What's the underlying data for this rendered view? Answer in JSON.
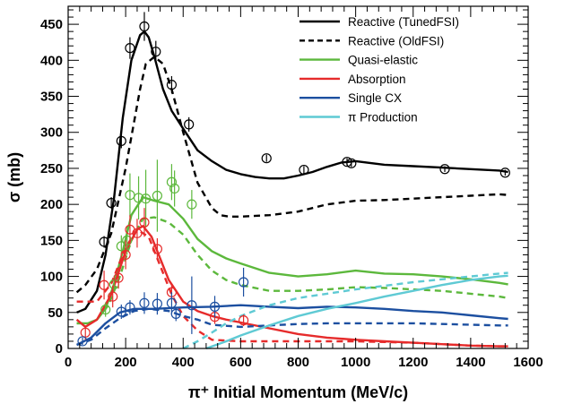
{
  "chart_data": {
    "type": "line",
    "title": "",
    "xlabel": "π⁺ Initial Momentum (MeV/c)",
    "ylabel": "σ (mb)",
    "xlim": [
      0,
      1600
    ],
    "ylim": [
      0,
      475
    ],
    "x_ticks": [
      "0",
      "200",
      "400",
      "600",
      "800",
      "1000",
      "1200",
      "1400",
      "1600"
    ],
    "y_ticks": [
      "0",
      "50",
      "100",
      "150",
      "200",
      "250",
      "300",
      "350",
      "400",
      "450"
    ],
    "grid": false,
    "legend_position": "top-right",
    "series": [
      {
        "name": "Reactive (TunedFSI)",
        "color": "#000000",
        "dash": "solid",
        "x": [
          30,
          60,
          100,
          130,
          160,
          190,
          220,
          250,
          265,
          280,
          300,
          330,
          360,
          400,
          450,
          500,
          550,
          600,
          650,
          700,
          750,
          800,
          850,
          900,
          950,
          1000,
          1100,
          1200,
          1300,
          1400,
          1500,
          1530
        ],
        "y": [
          50,
          55,
          80,
          130,
          210,
          320,
          400,
          435,
          440,
          432,
          405,
          360,
          330,
          305,
          275,
          260,
          248,
          242,
          238,
          236,
          236,
          240,
          245,
          252,
          258,
          260,
          255,
          253,
          251,
          249,
          247,
          245
        ]
      },
      {
        "name": "Reactive (OldFSI)",
        "color": "#000000",
        "dash": "dashed",
        "x": [
          30,
          60,
          100,
          150,
          200,
          250,
          270,
          300,
          330,
          360,
          400,
          450,
          500,
          530,
          560,
          600,
          700,
          800,
          900,
          1000,
          1100,
          1200,
          1300,
          1400,
          1500,
          1530
        ],
        "y": [
          78,
          88,
          110,
          160,
          250,
          360,
          395,
          405,
          395,
          360,
          300,
          230,
          195,
          185,
          183,
          183,
          185,
          190,
          200,
          205,
          206,
          208,
          210,
          212,
          214,
          213
        ]
      },
      {
        "name": "Quasi-elastic",
        "color": "#5cb83c",
        "dash": "solid",
        "x": [
          30,
          70,
          100,
          130,
          160,
          190,
          220,
          260,
          300,
          350,
          400,
          450,
          500,
          550,
          600,
          700,
          800,
          900,
          1000,
          1100,
          1200,
          1300,
          1400,
          1500,
          1530
        ],
        "y": [
          35,
          35,
          40,
          55,
          90,
          135,
          185,
          210,
          205,
          200,
          180,
          152,
          135,
          125,
          118,
          105,
          100,
          103,
          108,
          104,
          103,
          100,
          96,
          91,
          89
        ]
      },
      {
        "name": "Quasi-elastic (OldFSI)",
        "color": "#5cb83c",
        "dash": "dashed",
        "x": [
          30,
          70,
          100,
          140,
          180,
          220,
          260,
          300,
          350,
          400,
          450,
          500,
          550,
          600,
          700,
          800,
          900,
          1000,
          1100,
          1200,
          1300,
          1400,
          1500,
          1530
        ],
        "y": [
          35,
          35,
          40,
          60,
          100,
          150,
          180,
          182,
          175,
          158,
          130,
          108,
          95,
          88,
          80,
          80,
          82,
          85,
          84,
          82,
          80,
          76,
          72,
          70
        ]
      },
      {
        "name": "Absorption",
        "color": "#e62b2b",
        "dash": "solid",
        "x": [
          30,
          60,
          100,
          150,
          200,
          240,
          260,
          290,
          320,
          350,
          400,
          450,
          500,
          550,
          600,
          700,
          800,
          900,
          1000,
          1100,
          1200,
          1300,
          1400,
          1500,
          1530
        ],
        "y": [
          40,
          30,
          40,
          75,
          135,
          165,
          170,
          155,
          125,
          95,
          65,
          52,
          45,
          40,
          36,
          28,
          20,
          15,
          12,
          10,
          8,
          6,
          4,
          3,
          3
        ]
      },
      {
        "name": "Absorption (OldFSI)",
        "color": "#e62b2b",
        "dash": "dashed",
        "x": [
          30,
          100,
          150,
          200,
          240,
          280,
          320,
          360,
          400,
          450,
          500,
          600,
          700,
          800,
          900,
          1000,
          1100,
          1200,
          1300,
          1400,
          1500,
          1530
        ],
        "y": [
          65,
          65,
          90,
          140,
          165,
          155,
          115,
          75,
          45,
          25,
          12,
          10,
          10,
          10,
          10,
          10,
          9,
          8,
          6,
          4,
          3,
          3
        ]
      },
      {
        "name": "Single CX",
        "color": "#1c4fa0",
        "dash": "solid",
        "x": [
          30,
          80,
          130,
          180,
          230,
          300,
          400,
          500,
          600,
          700,
          800,
          900,
          1000,
          1100,
          1200,
          1300,
          1400,
          1500,
          1530
        ],
        "y": [
          5,
          15,
          35,
          50,
          55,
          55,
          57,
          58,
          60,
          58,
          56,
          58,
          57,
          55,
          52,
          50,
          46,
          42,
          41
        ]
      },
      {
        "name": "Single CX (OldFSI)",
        "color": "#1c4fa0",
        "dash": "dashed",
        "x": [
          30,
          80,
          130,
          180,
          230,
          280,
          350,
          400,
          450,
          500,
          600,
          700,
          800,
          900,
          1000,
          1100,
          1200,
          1300,
          1400,
          1500,
          1530
        ],
        "y": [
          5,
          12,
          28,
          42,
          52,
          55,
          52,
          45,
          40,
          33,
          30,
          32,
          34,
          35,
          35,
          35,
          35,
          34,
          33,
          32,
          32
        ]
      },
      {
        "name": "π Production",
        "color": "#5fcad4",
        "dash": "solid",
        "x": [
          480,
          550,
          600,
          700,
          800,
          900,
          1000,
          1100,
          1200,
          1300,
          1400,
          1500,
          1530
        ],
        "y": [
          0,
          10,
          18,
          32,
          45,
          55,
          63,
          72,
          80,
          88,
          95,
          100,
          101
        ]
      },
      {
        "name": "π Production (OldFSI)",
        "color": "#5fcad4",
        "dash": "dashed",
        "x": [
          400,
          450,
          500,
          550,
          600,
          700,
          800,
          900,
          1000,
          1100,
          1200,
          1300,
          1400,
          1500,
          1530
        ],
        "y": [
          0,
          10,
          22,
          35,
          45,
          60,
          70,
          76,
          82,
          87,
          92,
          96,
          100,
          104,
          105
        ]
      }
    ],
    "data_points": [
      {
        "color": "#000000",
        "points": [
          {
            "x": 125,
            "y": 148,
            "yerr": 8
          },
          {
            "x": 150,
            "y": 202,
            "yerr": 8
          },
          {
            "x": 185,
            "y": 288,
            "yerr": 10
          },
          {
            "x": 215,
            "y": 417,
            "yerr": 15
          },
          {
            "x": 265,
            "y": 447,
            "yerr": 20
          },
          {
            "x": 305,
            "y": 412,
            "yerr": 15
          },
          {
            "x": 360,
            "y": 366,
            "yerr": 12
          },
          {
            "x": 420,
            "y": 311,
            "yerr": 10
          },
          {
            "x": 690,
            "y": 264,
            "yerr": 5
          },
          {
            "x": 820,
            "y": 248,
            "yerr": 5
          },
          {
            "x": 970,
            "y": 259,
            "yerr": 5
          },
          {
            "x": 985,
            "y": 257,
            "yerr": 5
          },
          {
            "x": 1310,
            "y": 249,
            "yerr": 4
          },
          {
            "x": 1520,
            "y": 244,
            "yerr": 4
          }
        ]
      },
      {
        "color": "#5cb83c",
        "points": [
          {
            "x": 130,
            "y": 54,
            "yerr": 10
          },
          {
            "x": 160,
            "y": 89,
            "yerr": 12
          },
          {
            "x": 185,
            "y": 142,
            "yerr": 15
          },
          {
            "x": 205,
            "y": 150,
            "yerr": 20
          },
          {
            "x": 215,
            "y": 213,
            "yerr": 30
          },
          {
            "x": 245,
            "y": 209,
            "yerr": 30
          },
          {
            "x": 270,
            "y": 208,
            "yerr": 40
          },
          {
            "x": 310,
            "y": 212,
            "yerr": 50
          },
          {
            "x": 360,
            "y": 231,
            "yerr": 25
          },
          {
            "x": 370,
            "y": 222,
            "yerr": 25
          },
          {
            "x": 430,
            "y": 200,
            "yerr": 20
          }
        ]
      },
      {
        "color": "#e62b2b",
        "points": [
          {
            "x": 60,
            "y": 22,
            "yerr": 10
          },
          {
            "x": 125,
            "y": 88,
            "yerr": 20
          },
          {
            "x": 155,
            "y": 72,
            "yerr": 15
          },
          {
            "x": 175,
            "y": 98,
            "yerr": 15
          },
          {
            "x": 200,
            "y": 130,
            "yerr": 20
          },
          {
            "x": 215,
            "y": 165,
            "yerr": 20
          },
          {
            "x": 240,
            "y": 160,
            "yerr": 20
          },
          {
            "x": 265,
            "y": 175,
            "yerr": 20
          },
          {
            "x": 310,
            "y": 138,
            "yerr": 15
          },
          {
            "x": 360,
            "y": 78,
            "yerr": 10
          },
          {
            "x": 510,
            "y": 44,
            "yerr": 10
          },
          {
            "x": 610,
            "y": 39,
            "yerr": 8
          }
        ]
      },
      {
        "color": "#1c4fa0",
        "points": [
          {
            "x": 50,
            "y": 10,
            "yerr": 5
          },
          {
            "x": 185,
            "y": 51,
            "yerr": 10
          },
          {
            "x": 215,
            "y": 57,
            "yerr": 10
          },
          {
            "x": 265,
            "y": 63,
            "yerr": 15
          },
          {
            "x": 310,
            "y": 62,
            "yerr": 15
          },
          {
            "x": 360,
            "y": 63,
            "yerr": 15
          },
          {
            "x": 375,
            "y": 48,
            "yerr": 10
          },
          {
            "x": 430,
            "y": 60,
            "yerr": 40
          },
          {
            "x": 510,
            "y": 58,
            "yerr": 15
          },
          {
            "x": 610,
            "y": 92,
            "yerr": 20
          }
        ]
      }
    ],
    "legend": [
      {
        "label": "Reactive (TunedFSI)",
        "color": "#000000",
        "dash": "solid"
      },
      {
        "label": "Reactive (OldFSI)",
        "color": "#000000",
        "dash": "dashed"
      },
      {
        "label": "Quasi-elastic",
        "color": "#5cb83c",
        "dash": "solid"
      },
      {
        "label": "Absorption",
        "color": "#e62b2b",
        "dash": "solid"
      },
      {
        "label": "Single CX",
        "color": "#1c4fa0",
        "dash": "solid"
      },
      {
        "label": "π Production",
        "color": "#5fcad4",
        "dash": "solid"
      }
    ]
  }
}
